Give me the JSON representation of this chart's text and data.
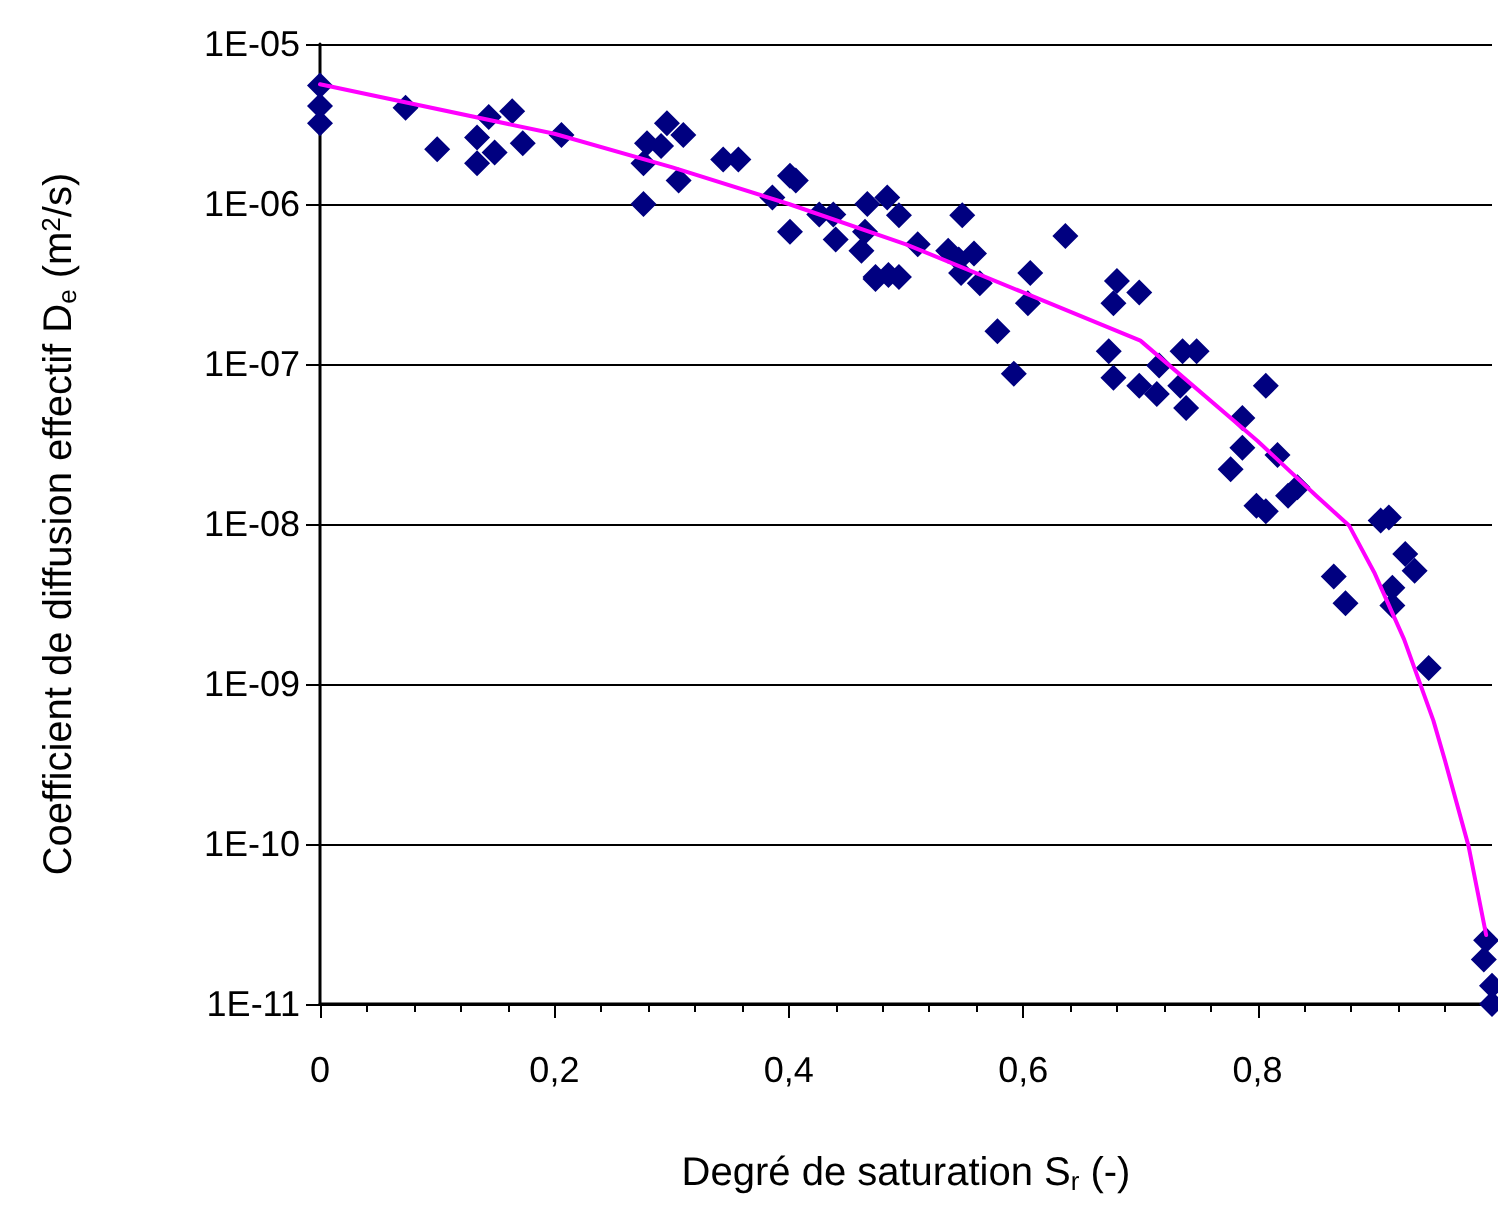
{
  "chart_data": {
    "type": "scatter",
    "xlabel": "Degré de saturation S$_{r}$ (-)",
    "ylabel": "Coefficient de diffusion effectif D$_{e}$ (m$^{2}$/s)",
    "log": "y",
    "grid": "y",
    "marker": "diamond",
    "xlim": [
      0,
      1
    ],
    "xticks": [
      0,
      {
        "value": 0.2,
        "label": "0,2"
      },
      {
        "value": 0.4,
        "label": "0,4"
      },
      {
        "value": 0.6,
        "label": "0,6"
      },
      {
        "value": 0.8,
        "label": "0,8"
      }
    ],
    "ylim": [
      1e-11,
      1e-05
    ],
    "yticks": [
      {
        "value": 1e-11,
        "label": "1E-11"
      },
      {
        "value": 1e-10,
        "label": "1E-10"
      },
      {
        "value": 1e-09,
        "label": "1E-09"
      },
      {
        "value": 1e-08,
        "label": "1E-08"
      },
      {
        "value": 1e-07,
        "label": "1E-07"
      },
      {
        "value": 1e-06,
        "label": "1E-06"
      },
      {
        "value": 1e-05,
        "label": "1E-05"
      }
    ],
    "series": [
      {
        "color": "#000080",
        "x": [
          0,
          0,
          0,
          0.073,
          0.1,
          0.144,
          0.164,
          0.173,
          0.134,
          0.134,
          0.149,
          0.206,
          0.276,
          0.276,
          0.279,
          0.291,
          0.296,
          0.31,
          0.306,
          0.344,
          0.357,
          0.386,
          0.401,
          0.406,
          0.401,
          0.426,
          0.438,
          0.44,
          0.467,
          0.484,
          0.465,
          0.462,
          0.474,
          0.485,
          0.494,
          0.548,
          0.51,
          0.474,
          0.494,
          0.536,
          0.545,
          0.547,
          0.558,
          0.563,
          0.606,
          0.604,
          0.578,
          0.592,
          0.636,
          0.68,
          0.677,
          0.699,
          0.673,
          0.677,
          0.699,
          0.714,
          0.716,
          0.734,
          0.739,
          0.736,
          0.748,
          0.807,
          0.787,
          0.787,
          0.777,
          0.817,
          0.826,
          0.834,
          0.799,
          0.807,
          0.905,
          0.912,
          0.926,
          0.934,
          0.865,
          0.875,
          0.915,
          0.915,
          0.946,
          0.993,
          0.995,
          1,
          1
        ],
        "values": [
          5.5e-06,
          4.1e-06,
          3.2e-06,
          4e-06,
          2.2e-06,
          3.5e-06,
          3.8e-06,
          2.4e-06,
          2.6e-06,
          1.8e-06,
          2.1e-06,
          2.7e-06,
          1e-06,
          1.8e-06,
          2.4e-06,
          2.3e-06,
          3.2e-06,
          2.7e-06,
          1.4e-06,
          1.9e-06,
          1.9e-06,
          1.1e-06,
          1.5e-06,
          1.4e-06,
          6.7e-07,
          8.6e-07,
          8.6e-07,
          6e-07,
          1e-06,
          1.1e-06,
          6.7e-07,
          5.1e-07,
          3.5e-07,
          3.6e-07,
          8.5e-07,
          8.5e-07,
          5.6e-07,
          3.4e-07,
          3.5e-07,
          5.1e-07,
          4.5e-07,
          3.7e-07,
          4.9e-07,
          3.2e-07,
          3.7e-07,
          2.4e-07,
          1.6e-07,
          8.7e-08,
          6.3e-07,
          3.3e-07,
          2.4e-07,
          2.8e-07,
          1.2e-07,
          8.2e-08,
          7.3e-08,
          6.5e-08,
          9.8e-08,
          7.3e-08,
          5.3e-08,
          1.2e-07,
          1.2e-07,
          7.3e-08,
          4.6e-08,
          3e-08,
          2.2e-08,
          2.7e-08,
          1.5e-08,
          1.7e-08,
          1.3e-08,
          1.2e-08,
          1.05e-08,
          1.1e-08,
          6.5e-09,
          5.1e-09,
          4.7e-09,
          3.2e-09,
          4e-09,
          3.1e-09,
          1.26e-09,
          1.9e-11,
          2.5e-11,
          1.3e-11,
          1e-11
        ]
      },
      {
        "type": "line",
        "color": "#ff00ff",
        "marker": "none",
        "line_style": "solid",
        "x": [
          0,
          0.2,
          0.3,
          0.4,
          0.5,
          0.6,
          0.7,
          0.8,
          0.85,
          0.878,
          0.9,
          0.925,
          0.95,
          0.96,
          0.98,
          0.995
        ],
        "values": [
          5.6e-06,
          2.75e-06,
          1.7e-06,
          1e-06,
          5.6e-07,
          2.8e-07,
          1.4e-07,
          3.3e-08,
          1.5e-08,
          9.8e-09,
          4.9e-09,
          1.9e-09,
          5.9e-10,
          3.3e-10,
          9.7e-11,
          2.7e-11
        ]
      }
    ]
  }
}
